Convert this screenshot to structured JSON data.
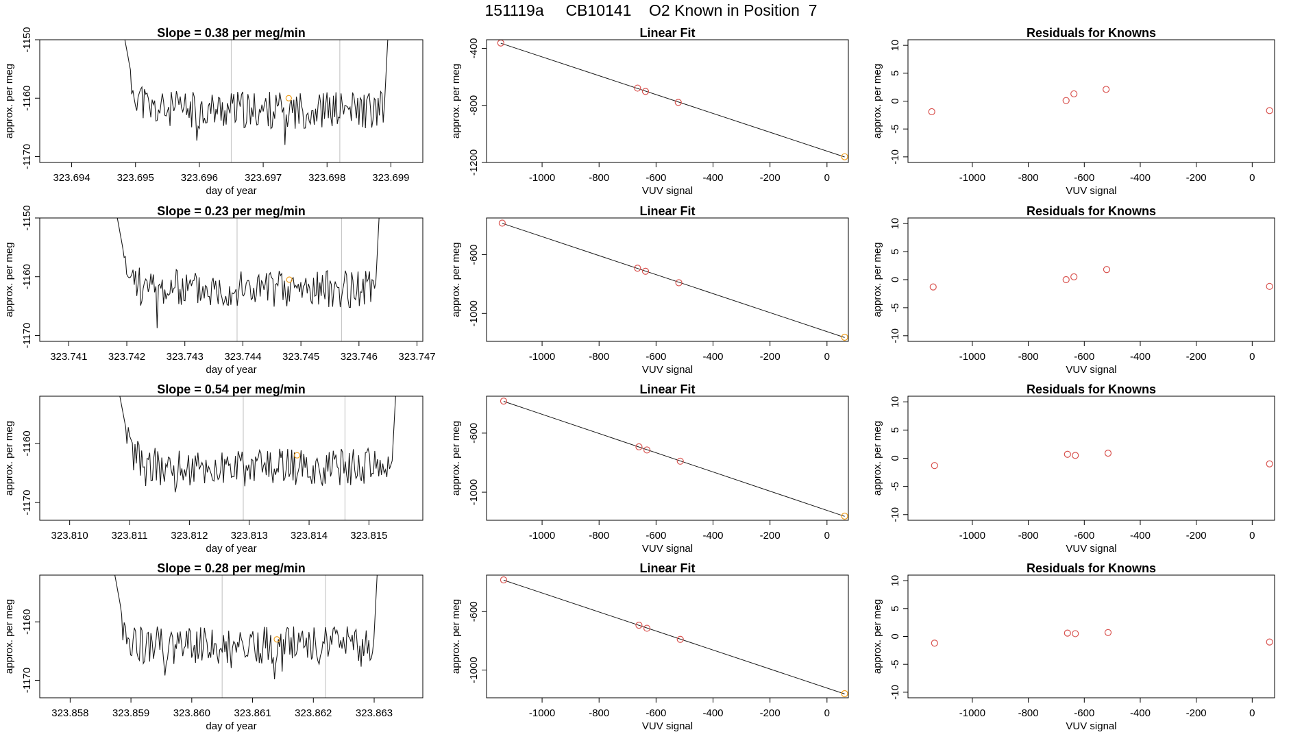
{
  "figure": {
    "title": "151119a     CB10141    O2 Known in Position  7"
  },
  "colors": {
    "axis": "#000000",
    "trace": "#1a1a1a",
    "marker_red": "#d9534f",
    "marker_orange": "#f0a020",
    "vline": "#c8c8c8"
  },
  "chart_data": [
    {
      "type": "line",
      "title": "Slope =  0.38  per meg/min",
      "xlabel": "day of year",
      "ylabel": "approx. per meg",
      "xlim": [
        323.6935,
        323.6995
      ],
      "ylim": [
        -1171,
        -1150
      ],
      "xticks": [
        323.694,
        323.695,
        323.696,
        323.697,
        323.698,
        323.699
      ],
      "xtick_labels": [
        "323.694",
        "323.695",
        "323.696",
        "323.697",
        "323.698",
        "323.699"
      ],
      "yticks": [
        -1170,
        -1160,
        -1150
      ],
      "ytick_labels": [
        "-1170",
        "-1160",
        "-1150"
      ],
      "vlines": [
        323.6965,
        323.6982
      ],
      "x_start": 323.6948,
      "x_end": 323.699,
      "baseline": -1162,
      "seed": 11,
      "highlight": {
        "x": 323.6974,
        "y": -1160
      }
    },
    {
      "type": "line",
      "title": "Slope =  0.23  per meg/min",
      "xlabel": "day of year",
      "ylabel": "approx. per meg",
      "xlim": [
        323.7405,
        323.7471
      ],
      "ylim": [
        -1171,
        -1150
      ],
      "xticks": [
        323.741,
        323.742,
        323.743,
        323.744,
        323.745,
        323.746,
        323.747
      ],
      "xtick_labels": [
        "323.741",
        "323.742",
        "323.743",
        "323.744",
        "323.745",
        "323.746",
        "323.747"
      ],
      "yticks": [
        -1170,
        -1160,
        -1150
      ],
      "ytick_labels": [
        "-1170",
        "-1160",
        "-1150"
      ],
      "vlines": [
        323.7439,
        323.7457
      ],
      "x_start": 323.7418,
      "x_end": 323.7464,
      "baseline": -1162,
      "seed": 23,
      "highlight": {
        "x": 323.7448,
        "y": -1160.5
      }
    },
    {
      "type": "line",
      "title": "Slope =  0.54  per meg/min",
      "xlabel": "day of year",
      "ylabel": "approx. per meg",
      "xlim": [
        323.8095,
        323.8159
      ],
      "ylim": [
        -1173,
        -1152
      ],
      "xticks": [
        323.81,
        323.811,
        323.812,
        323.813,
        323.814,
        323.815
      ],
      "xtick_labels": [
        "323.810",
        "323.811",
        "323.812",
        "323.813",
        "323.814",
        "323.815"
      ],
      "yticks": [
        -1170,
        -1160
      ],
      "ytick_labels": [
        "-1170",
        "-1160"
      ],
      "vlines": [
        323.8129,
        323.8146
      ],
      "x_start": 323.8108,
      "x_end": 323.8155,
      "baseline": -1164,
      "seed": 37,
      "highlight": {
        "x": 323.8138,
        "y": -1162
      }
    },
    {
      "type": "line",
      "title": "Slope =  0.28  per meg/min",
      "xlabel": "day of year",
      "ylabel": "approx. per meg",
      "xlim": [
        323.8575,
        323.8638
      ],
      "ylim": [
        -1173,
        -1152
      ],
      "xticks": [
        323.858,
        323.859,
        323.86,
        323.861,
        323.862,
        323.863
      ],
      "xtick_labels": [
        "323.858",
        "323.859",
        "323.860",
        "323.861",
        "323.862",
        "323.863"
      ],
      "yticks": [
        -1170,
        -1160
      ],
      "ytick_labels": [
        "-1170",
        "-1160"
      ],
      "vlines": [
        323.8605,
        323.8622
      ],
      "x_start": 323.8587,
      "x_end": 323.8631,
      "baseline": -1164,
      "seed": 53,
      "highlight": {
        "x": 323.8614,
        "y": -1163
      }
    },
    {
      "type": "scatter",
      "title": "Linear Fit",
      "xlabel": "VUV signal",
      "ylabel": "approx. per meg",
      "xlim": [
        -1195,
        75
      ],
      "ylim": [
        -1200,
        -340
      ],
      "xticks": [
        -1000,
        -800,
        -600,
        -400,
        -200,
        0
      ],
      "xtick_labels": [
        "-1000",
        "-800",
        "-600",
        "-400",
        "-200",
        "0"
      ],
      "yticks": [
        -1200,
        -800,
        -400
      ],
      "ytick_labels": [
        "-1200",
        "-800",
        "-400"
      ],
      "x": [
        -1145,
        -665,
        -637,
        -522,
        62
      ],
      "y": [
        -363,
        -679,
        -702,
        -779,
        -1160
      ],
      "point_colors": [
        "red",
        "red",
        "red",
        "red",
        "orange"
      ]
    },
    {
      "type": "scatter",
      "title": "Linear Fit",
      "xlabel": "VUV signal",
      "ylabel": "approx. per meg",
      "xlim": [
        -1195,
        75
      ],
      "ylim": [
        -1190,
        -350
      ],
      "xticks": [
        -1000,
        -800,
        -600,
        -400,
        -200,
        0
      ],
      "xtick_labels": [
        "-1000",
        "-800",
        "-600",
        "-400",
        "-200",
        "0"
      ],
      "yticks": [
        -1000,
        -600
      ],
      "ytick_labels": [
        "-1000",
        "-600"
      ],
      "x": [
        -1140,
        -665,
        -637,
        -520,
        62
      ],
      "y": [
        -385,
        -692,
        -713,
        -791,
        -1162
      ],
      "point_colors": [
        "red",
        "red",
        "red",
        "red",
        "orange"
      ]
    },
    {
      "type": "scatter",
      "title": "Linear Fit",
      "xlabel": "VUV signal",
      "ylabel": "approx. per meg",
      "xlim": [
        -1195,
        75
      ],
      "ylim": [
        -1190,
        -350
      ],
      "xticks": [
        -1000,
        -800,
        -600,
        -400,
        -200,
        0
      ],
      "xtick_labels": [
        "-1000",
        "-800",
        "-600",
        "-400",
        "-200",
        "0"
      ],
      "yticks": [
        -1000,
        -600
      ],
      "ytick_labels": [
        "-1000",
        "-600"
      ],
      "x": [
        -1135,
        -660,
        -632,
        -515,
        62
      ],
      "y": [
        -383,
        -693,
        -714,
        -790,
        -1162
      ],
      "point_colors": [
        "red",
        "red",
        "red",
        "red",
        "orange"
      ]
    },
    {
      "type": "scatter",
      "title": "Linear Fit",
      "xlabel": "VUV signal",
      "ylabel": "approx. per meg",
      "xlim": [
        -1195,
        75
      ],
      "ylim": [
        -1190,
        -350
      ],
      "xticks": [
        -1000,
        -800,
        -600,
        -400,
        -200,
        0
      ],
      "xtick_labels": [
        "-1000",
        "-800",
        "-600",
        "-400",
        "-200",
        "0"
      ],
      "yticks": [
        -1000,
        -600
      ],
      "ytick_labels": [
        "-1000",
        "-600"
      ],
      "x": [
        -1135,
        -660,
        -632,
        -515,
        62
      ],
      "y": [
        -383,
        -693,
        -714,
        -790,
        -1162
      ],
      "point_colors": [
        "red",
        "red",
        "red",
        "red",
        "orange"
      ]
    },
    {
      "type": "scatter",
      "title": "Residuals for Knowns",
      "xlabel": "VUV signal",
      "ylabel": "approx. per meg",
      "xlim": [
        -1230,
        80
      ],
      "ylim": [
        -11,
        11
      ],
      "xticks": [
        -1000,
        -800,
        -600,
        -400,
        -200,
        0
      ],
      "xtick_labels": [
        "-1000",
        "-800",
        "-600",
        "-400",
        "-200",
        "0"
      ],
      "yticks": [
        -10,
        -5,
        0,
        5,
        10
      ],
      "ytick_labels": [
        "-10",
        "-5",
        "0",
        "5",
        "10"
      ],
      "x": [
        -1145,
        -665,
        -637,
        -522,
        62
      ],
      "y": [
        -1.9,
        0.1,
        1.3,
        2.1,
        -1.7
      ],
      "point_colors": [
        "red",
        "red",
        "red",
        "red",
        "red"
      ]
    },
    {
      "type": "scatter",
      "title": "Residuals for Knowns",
      "xlabel": "VUV signal",
      "ylabel": "approx. per meg",
      "xlim": [
        -1230,
        80
      ],
      "ylim": [
        -11,
        11
      ],
      "xticks": [
        -1000,
        -800,
        -600,
        -400,
        -200,
        0
      ],
      "xtick_labels": [
        "-1000",
        "-800",
        "-600",
        "-400",
        "-200",
        "0"
      ],
      "yticks": [
        -10,
        -5,
        0,
        5,
        10
      ],
      "ytick_labels": [
        "-10",
        "-5",
        "0",
        "5",
        "10"
      ],
      "x": [
        -1140,
        -665,
        -637,
        -520,
        62
      ],
      "y": [
        -1.3,
        0.0,
        0.5,
        1.8,
        -1.2
      ],
      "point_colors": [
        "red",
        "red",
        "red",
        "red",
        "red"
      ]
    },
    {
      "type": "scatter",
      "title": "Residuals for Knowns",
      "xlabel": "VUV signal",
      "ylabel": "approx. per meg",
      "xlim": [
        -1230,
        80
      ],
      "ylim": [
        -11,
        11
      ],
      "xticks": [
        -1000,
        -800,
        -600,
        -400,
        -200,
        0
      ],
      "xtick_labels": [
        "-1000",
        "-800",
        "-600",
        "-400",
        "-200",
        "0"
      ],
      "yticks": [
        -10,
        -5,
        0,
        5,
        10
      ],
      "ytick_labels": [
        "-10",
        "-5",
        "0",
        "5",
        "10"
      ],
      "x": [
        -1135,
        -660,
        -632,
        -515,
        62
      ],
      "y": [
        -1.3,
        0.7,
        0.5,
        0.9,
        -1.0
      ],
      "point_colors": [
        "red",
        "red",
        "red",
        "red",
        "red"
      ]
    },
    {
      "type": "scatter",
      "title": "Residuals for Knowns",
      "xlabel": "VUV signal",
      "ylabel": "approx. per meg",
      "xlim": [
        -1230,
        80
      ],
      "ylim": [
        -11,
        11
      ],
      "xticks": [
        -1000,
        -800,
        -600,
        -400,
        -200,
        0
      ],
      "xtick_labels": [
        "-1000",
        "-800",
        "-600",
        "-400",
        "-200",
        "0"
      ],
      "yticks": [
        -10,
        -5,
        0,
        5,
        10
      ],
      "ytick_labels": [
        "-10",
        "-5",
        "0",
        "5",
        "10"
      ],
      "x": [
        -1135,
        -660,
        -632,
        -515,
        62
      ],
      "y": [
        -1.2,
        0.6,
        0.5,
        0.7,
        -1.0
      ],
      "point_colors": [
        "red",
        "red",
        "red",
        "red",
        "red"
      ]
    }
  ]
}
